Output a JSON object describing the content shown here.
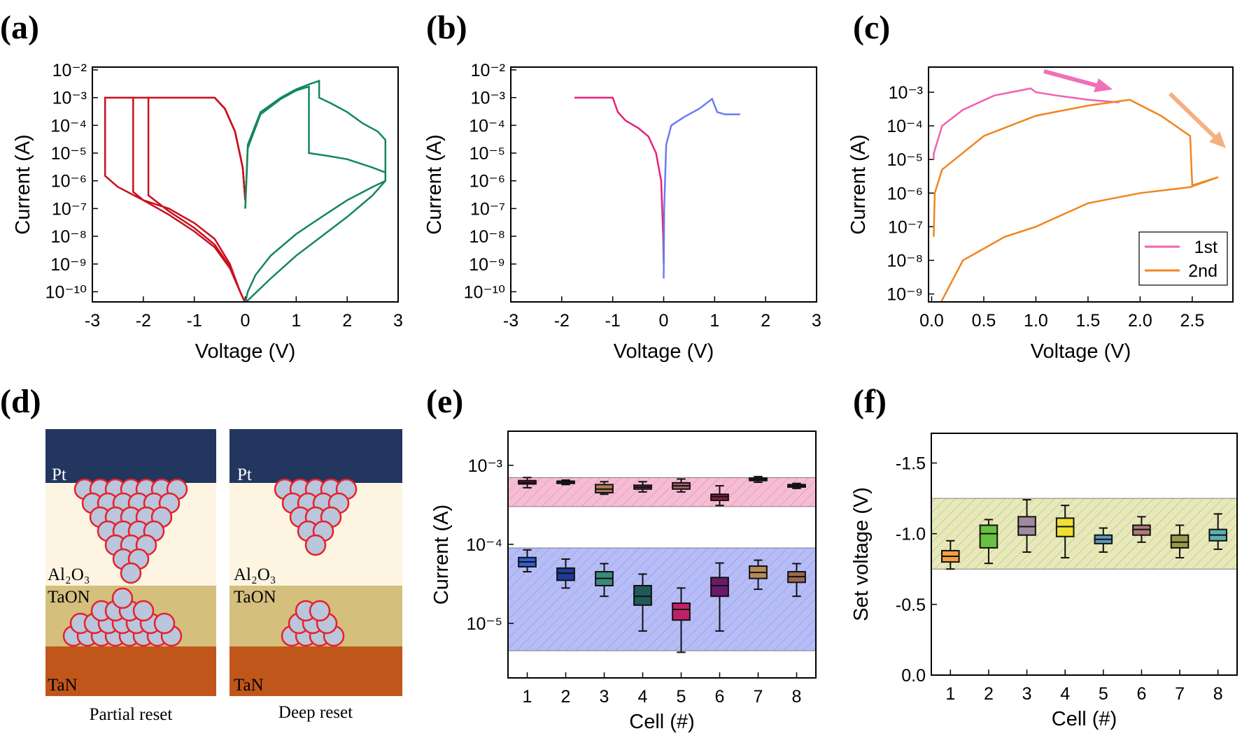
{
  "chart_data": [
    {
      "type": "line",
      "panel": "(a)",
      "xlabel": "Voltage (V)",
      "ylabel": "Current (A)",
      "ylog": true,
      "xlim": [
        -3,
        3
      ],
      "ylim": [
        0.0126,
        4.3e-11
      ],
      "xticks": [
        -3,
        -2,
        -1,
        0,
        1,
        2,
        3
      ],
      "yticks": [
        {
          "value": 1e-10,
          "label": "10⁻¹⁰"
        },
        {
          "value": 1e-09,
          "label": "10⁻⁹"
        },
        {
          "value": 1e-08,
          "label": "10⁻⁸"
        },
        {
          "value": 1e-07,
          "label": "10⁻⁷"
        },
        {
          "value": 1e-06,
          "label": "10⁻⁶"
        },
        {
          "value": 1e-05,
          "label": "10⁻⁵"
        },
        {
          "value": 0.0001,
          "label": "10⁻⁴"
        },
        {
          "value": 0.001,
          "label": "10⁻³"
        },
        {
          "value": 0.01,
          "label": "10⁻²"
        }
      ],
      "series": [
        {
          "color": "#c8101e",
          "x": [
            0,
            -0.05,
            -0.2,
            -0.4,
            -0.6,
            -1.5,
            -2.75,
            -2.75,
            -2.5,
            -2.0,
            -1.5,
            -1.0,
            -0.6,
            -0.3,
            -0.1,
            0
          ],
          "values": [
            2e-07,
            3e-06,
            6e-05,
            0.0004,
            0.001,
            0.001,
            0.001,
            1.5e-06,
            6e-07,
            2e-07,
            1e-07,
            3e-08,
            8e-09,
            1e-09,
            1e-10,
            4e-11
          ]
        },
        {
          "color": "#c8101e",
          "x": [
            0,
            -0.05,
            -0.2,
            -0.4,
            -0.6,
            -1.5,
            -2.2,
            -2.2,
            -2.0,
            -1.5,
            -1.0,
            -0.6,
            -0.3,
            -0.1,
            0
          ],
          "values": [
            2e-07,
            3e-06,
            6e-05,
            0.0004,
            0.001,
            0.001,
            0.001,
            4e-07,
            2e-07,
            6e-08,
            1.5e-08,
            4e-09,
            7e-10,
            1e-10,
            4e-11
          ]
        },
        {
          "color": "#c8101e",
          "x": [
            0,
            -0.05,
            -0.2,
            -0.4,
            -0.6,
            -1.5,
            -1.9,
            -1.9,
            -1.5,
            -1.0,
            -0.6,
            -0.3,
            -0.1,
            0
          ],
          "values": [
            2e-07,
            3e-06,
            6e-05,
            0.0004,
            0.001,
            0.001,
            0.001,
            3e-07,
            8e-08,
            2e-08,
            5e-09,
            8e-10,
            1e-10,
            4e-11
          ]
        },
        {
          "color": "#14875c",
          "x": [
            0,
            0.05,
            0.3,
            0.7,
            1.0,
            1.25,
            1.45,
            1.45,
            1.7,
            2.0,
            2.3,
            2.6,
            2.75,
            2.75,
            2.5,
            2.0,
            1.5,
            1.0,
            0.5,
            0.2,
            0.05,
            0
          ],
          "values": [
            1e-07,
            2e-05,
            0.0003,
            0.001,
            0.002,
            0.003,
            0.004,
            0.001,
            0.0006,
            0.0003,
            0.00012,
            6e-05,
            3e-05,
            1e-06,
            6e-07,
            2e-07,
            5e-08,
            1.2e-08,
            2e-09,
            4e-10,
            1e-10,
            4e-11
          ]
        },
        {
          "color": "#14875c",
          "x": [
            0,
            0.05,
            0.3,
            0.7,
            1.0,
            1.25,
            1.25,
            1.6,
            2.0,
            2.5,
            2.75,
            2.75,
            2.5,
            2.0,
            1.5,
            1.0,
            0.5,
            0.1,
            0
          ],
          "values": [
            1e-07,
            1.5e-05,
            0.00025,
            0.0009,
            0.0018,
            0.0025,
            1e-05,
            8e-06,
            6e-06,
            3e-06,
            2e-06,
            1e-06,
            3e-07,
            5e-08,
            1e-08,
            2e-09,
            3e-10,
            6e-11,
            4e-11
          ]
        }
      ]
    },
    {
      "type": "line",
      "panel": "(b)",
      "xlabel": "Voltage (V)",
      "ylabel": "Current (A)",
      "ylog": true,
      "xlim": [
        -3,
        3
      ],
      "ylim": [
        0.0126,
        4.3e-11
      ],
      "xticks": [
        -3,
        -2,
        -1,
        0,
        1,
        2,
        3
      ],
      "yticks": [
        {
          "value": 1e-10,
          "label": "10⁻¹⁰"
        },
        {
          "value": 1e-09,
          "label": "10⁻⁹"
        },
        {
          "value": 1e-08,
          "label": "10⁻⁸"
        },
        {
          "value": 1e-07,
          "label": "10⁻⁷"
        },
        {
          "value": 1e-06,
          "label": "10⁻⁶"
        },
        {
          "value": 1e-05,
          "label": "10⁻⁵"
        },
        {
          "value": 0.0001,
          "label": "10⁻⁴"
        },
        {
          "value": 0.001,
          "label": "10⁻³"
        },
        {
          "value": 0.01,
          "label": "10⁻²"
        }
      ],
      "series": [
        {
          "color": "#e8207a",
          "x": [
            -1.75,
            -1.0,
            -0.9,
            -0.75,
            -0.5,
            -0.3,
            -0.15,
            -0.05,
            -0.01,
            0
          ],
          "values": [
            0.001,
            0.001,
            0.0003,
            0.00015,
            8e-05,
            4e-05,
            1e-05,
            1e-06,
            1e-08,
            1e-09
          ]
        },
        {
          "color": "#6a7cf0",
          "x": [
            0,
            0.01,
            0.05,
            0.15,
            0.4,
            0.7,
            0.95,
            1.05,
            1.2,
            1.5
          ],
          "values": [
            3e-10,
            1e-07,
            2e-05,
            0.0001,
            0.0002,
            0.0004,
            0.0009,
            0.0003,
            0.00025,
            0.00025
          ]
        }
      ]
    },
    {
      "type": "line",
      "panel": "(c)",
      "xlabel": "Voltage (V)",
      "ylabel": "Current (A)",
      "ylog": true,
      "legend": "lower right",
      "xlim": [
        -0.03,
        2.89
      ],
      "ylim": [
        0.0056,
        5.8e-10
      ],
      "xticks": [
        {
          "value": 0,
          "label": "0.0"
        },
        0.5,
        {
          "value": 1,
          "label": "1.0"
        },
        1.5,
        {
          "value": 2,
          "label": "2.0"
        },
        2.5
      ],
      "yticks": [
        {
          "value": 1e-09,
          "label": "10⁻⁹"
        },
        {
          "value": 1e-08,
          "label": "10⁻⁸"
        },
        {
          "value": 1e-07,
          "label": "10⁻⁷"
        },
        {
          "value": 1e-06,
          "label": "10⁻⁶"
        },
        {
          "value": 1e-05,
          "label": "10⁻⁵"
        },
        {
          "value": 0.0001,
          "label": "10⁻⁴"
        },
        {
          "value": 0.001,
          "label": "10⁻³"
        }
      ],
      "series": [
        {
          "name": "1st",
          "color": "#f060b0",
          "x": [
            0.02,
            0.02,
            0.1,
            0.3,
            0.6,
            0.95,
            1.0,
            1.2,
            1.5,
            1.8
          ],
          "values": [
            1e-05,
            1.5e-05,
            0.0001,
            0.0003,
            0.0008,
            0.0013,
            0.001,
            0.0008,
            0.0006,
            0.0005
          ]
        },
        {
          "name": "2nd",
          "color": "#f0861e",
          "x": [
            0.08,
            0.3,
            0.7,
            1.0,
            1.5,
            2.0,
            2.48,
            2.75,
            2.5,
            2.48,
            2.2,
            1.9,
            1.5,
            1.0,
            0.5,
            0.1,
            0.03,
            0.02
          ],
          "values": [
            5e-10,
            1e-08,
            5e-08,
            1e-07,
            5e-07,
            1e-06,
            1.5e-06,
            3e-06,
            1.7e-06,
            5e-05,
            0.0002,
            0.0006,
            0.0004,
            0.0002,
            5e-05,
            5e-06,
            1e-06,
            5e-08
          ]
        }
      ]
    },
    {
      "type": "box",
      "panel": "(e)",
      "xlabel": "Cell (#)",
      "ylabel": "Current (A)",
      "ylog": true,
      "categories": [
        "1",
        "2",
        "3",
        "4",
        "5",
        "6",
        "7",
        "8"
      ],
      "ylim": [
        0.0027,
        2.04e-06
      ],
      "yticks": [
        {
          "value": 1e-05,
          "label": "10⁻⁵"
        },
        {
          "value": 0.0001,
          "label": "10⁻⁴"
        },
        {
          "value": 0.001,
          "label": "10⁻³"
        }
      ],
      "bands": [
        {
          "range": [
            0.0003,
            0.0007
          ],
          "color": "#f4a6c6"
        },
        {
          "range": [
            4.5e-06,
            9e-05
          ],
          "color": "#9ea6f6"
        }
      ],
      "series": [
        {
          "colors": [
            "#7a1030",
            "#7a1030",
            "#b07a5a",
            "#8a2a40",
            "#b0606a",
            "#8a2040",
            "#a06a4a",
            "#7a1030"
          ],
          "values": [
            [
              0.00052,
              0.00058,
              0.0006,
              0.00064,
              0.0007
            ],
            [
              0.00057,
              0.00059,
              0.00061,
              0.00063,
              0.00065
            ],
            [
              0.00043,
              0.00045,
              0.0005,
              0.00057,
              0.00062
            ],
            [
              0.00046,
              0.0005,
              0.00053,
              0.00056,
              0.00062
            ],
            [
              0.00046,
              0.0005,
              0.00055,
              0.0006,
              0.00067
            ],
            [
              0.00031,
              0.00036,
              0.0004,
              0.00043,
              0.00055
            ],
            [
              0.00061,
              0.00064,
              0.00066,
              0.00069,
              0.00072
            ],
            [
              0.00051,
              0.00053,
              0.00055,
              0.00057,
              0.00059
            ]
          ]
        },
        {
          "colors": [
            "#2f5fd0",
            "#1f3a9a",
            "#3a8a7a",
            "#1f5a5a",
            "#c0206a",
            "#6a1a6a",
            "#b88a5a",
            "#9a6a4a"
          ],
          "values": [
            [
              4.5e-05,
              5.2e-05,
              6e-05,
              6.8e-05,
              8.5e-05
            ],
            [
              2.8e-05,
              3.5e-05,
              4.3e-05,
              5e-05,
              6.5e-05
            ],
            [
              2.2e-05,
              3e-05,
              3.7e-05,
              4.5e-05,
              5.7e-05
            ],
            [
              8e-06,
              1.7e-05,
              2.2e-05,
              3e-05,
              4.2e-05
            ],
            [
              4.3e-06,
              1.1e-05,
              1.5e-05,
              1.8e-05,
              2.8e-05
            ],
            [
              8e-06,
              2.2e-05,
              3e-05,
              3.8e-05,
              5.8e-05
            ],
            [
              2.7e-05,
              3.7e-05,
              4.4e-05,
              5.3e-05,
              6.3e-05
            ],
            [
              2.2e-05,
              3.3e-05,
              3.9e-05,
              4.5e-05,
              5.7e-05
            ]
          ]
        }
      ]
    },
    {
      "type": "box",
      "panel": "(f)",
      "xlabel": "Cell (#)",
      "ylabel": "Set voltage (V)",
      "ylog": false,
      "categories": [
        "1",
        "2",
        "3",
        "4",
        "5",
        "6",
        "7",
        "8"
      ],
      "ylim": [
        0,
        -1.71
      ],
      "yticks": [
        {
          "value": 0,
          "label": "0.0"
        },
        -0.5,
        {
          "value": -1,
          "label": "-1.0"
        },
        -1.5
      ],
      "bands": [
        {
          "range": [
            -0.75,
            -1.25
          ],
          "color": "#dfe2a0"
        }
      ],
      "series": [
        {
          "colors": [
            "#f0a040",
            "#6ac040",
            "#a08aa0",
            "#f0e030",
            "#5a9ac0",
            "#b07a7a",
            "#9a9a4a",
            "#5ab0b0"
          ],
          "values": [
            [
              -0.75,
              -0.8,
              -0.84,
              -0.88,
              -0.95
            ],
            [
              -0.79,
              -0.9,
              -1.0,
              -1.06,
              -1.1
            ],
            [
              -0.87,
              -0.99,
              -1.05,
              -1.12,
              -1.24
            ],
            [
              -0.83,
              -0.98,
              -1.05,
              -1.11,
              -1.2
            ],
            [
              -0.87,
              -0.93,
              -0.96,
              -0.99,
              -1.04
            ],
            [
              -0.94,
              -0.99,
              -1.03,
              -1.06,
              -1.12
            ],
            [
              -0.83,
              -0.9,
              -0.94,
              -0.99,
              -1.06
            ],
            [
              -0.89,
              -0.95,
              -0.99,
              -1.03,
              -1.14
            ]
          ]
        }
      ]
    }
  ],
  "diagram": {
    "panel": "(d)",
    "columns": [
      {
        "caption": "Partial reset",
        "layers": [
          "Pt",
          "Al₂O₃",
          "TaON",
          "TaN"
        ]
      },
      {
        "caption": "Deep reset",
        "layers": [
          "Pt",
          "Al₂O₃",
          "TaON",
          "TaN"
        ]
      }
    ]
  }
}
